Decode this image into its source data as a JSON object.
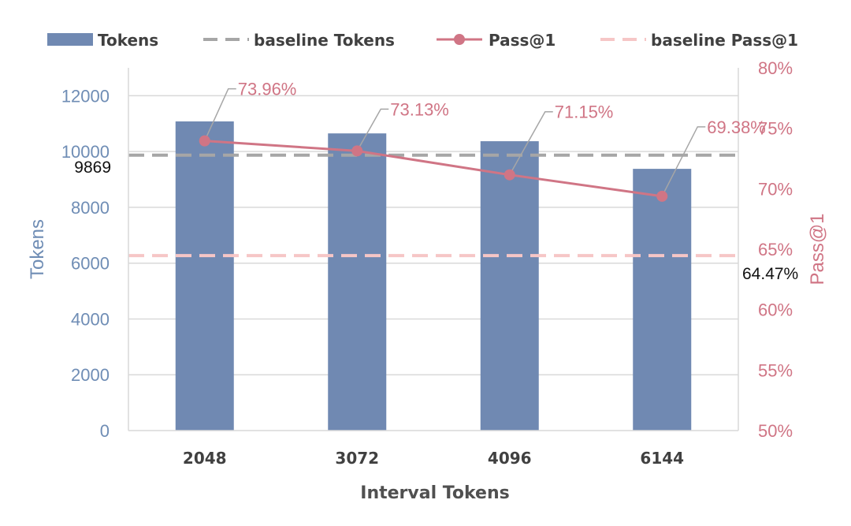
{
  "chart_data": {
    "type": "bar",
    "xlabel": "Interval Tokens",
    "ylabel": "Tokens",
    "y2label": "Pass@1",
    "categories": [
      "2048",
      "3072",
      "4096",
      "6144"
    ],
    "series": [
      {
        "name": "Tokens",
        "type": "bar",
        "axis": "left",
        "values": [
          11080,
          10650,
          10370,
          9380
        ],
        "color": "#7089b2"
      },
      {
        "name": "Pass@1",
        "type": "line",
        "axis": "right",
        "values": [
          73.96,
          73.13,
          71.15,
          69.38
        ],
        "labels": [
          "73.96%",
          "73.13%",
          "71.15%",
          "69.38%"
        ],
        "color": "#d07585"
      }
    ],
    "baselines": [
      {
        "name": "baseline Tokens",
        "axis": "left",
        "value": 9869,
        "label": "9869",
        "color": "#a6a6a6"
      },
      {
        "name": "baseline Pass@1",
        "axis": "right",
        "value": 64.47,
        "label": "64.47%",
        "color": "#f6c6c6"
      }
    ],
    "ylim": [
      0,
      13000
    ],
    "yticks": [
      0,
      2000,
      4000,
      6000,
      8000,
      10000,
      12000
    ],
    "y2lim": [
      50,
      80
    ],
    "y2ticks": [
      50,
      55,
      60,
      65,
      70,
      75,
      80
    ],
    "y2tick_labels": [
      "50%",
      "55%",
      "60%",
      "65%",
      "70%",
      "75%",
      "80%"
    ],
    "grid": true,
    "legend_position": "top"
  },
  "colors": {
    "bar": "#7089b2",
    "line": "#d07585",
    "baseline_tokens": "#a6a6a6",
    "baseline_pass": "#f6c6c6",
    "grid": "#d9d9d9",
    "leader": "#a6a6a6"
  }
}
